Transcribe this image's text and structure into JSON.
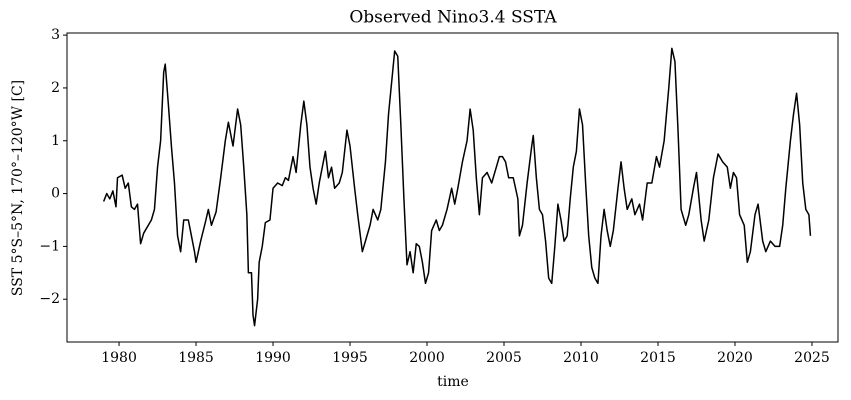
{
  "chart_data": {
    "type": "line",
    "title": "Observed Nino3.4 SSTA",
    "x_label": "time",
    "y_label": "SST 5°S–5°N, 170°–120°W [C]",
    "x": [
      1979.0,
      1979.2,
      1979.4,
      1979.6,
      1979.8,
      1979.9,
      1980.2,
      1980.4,
      1980.6,
      1980.8,
      1981.0,
      1981.2,
      1981.4,
      1981.6,
      1981.9,
      1982.1,
      1982.3,
      1982.5,
      1982.7,
      1982.9,
      1983.0,
      1983.2,
      1983.4,
      1983.6,
      1983.8,
      1984.0,
      1984.2,
      1984.5,
      1984.7,
      1984.9,
      1985.0,
      1985.3,
      1985.6,
      1985.8,
      1986.0,
      1986.3,
      1986.6,
      1986.9,
      1987.1,
      1987.4,
      1987.7,
      1987.9,
      1988.1,
      1988.3,
      1988.4,
      1988.6,
      1988.7,
      1988.8,
      1989.0,
      1989.1,
      1989.3,
      1989.5,
      1989.8,
      1990.0,
      1990.3,
      1990.6,
      1990.8,
      1991.0,
      1991.3,
      1991.5,
      1991.8,
      1992.0,
      1992.2,
      1992.4,
      1992.6,
      1992.8,
      1993.0,
      1993.2,
      1993.4,
      1993.6,
      1993.8,
      1994.0,
      1994.3,
      1994.5,
      1994.8,
      1995.0,
      1995.3,
      1995.5,
      1995.8,
      1996.0,
      1996.3,
      1996.5,
      1996.8,
      1997.0,
      1997.3,
      1997.5,
      1997.8,
      1997.9,
      1998.1,
      1998.3,
      1998.5,
      1998.7,
      1998.9,
      1999.1,
      1999.3,
      1999.5,
      1999.7,
      1999.9,
      2000.1,
      2000.3,
      2000.6,
      2000.8,
      2001.0,
      2001.3,
      2001.6,
      2001.8,
      2002.0,
      2002.3,
      2002.6,
      2002.8,
      2003.0,
      2003.2,
      2003.4,
      2003.6,
      2003.9,
      2004.2,
      2004.5,
      2004.7,
      2004.9,
      2005.1,
      2005.3,
      2005.6,
      2005.9,
      2006.0,
      2006.2,
      2006.5,
      2006.8,
      2006.9,
      2007.1,
      2007.3,
      2007.5,
      2007.7,
      2007.9,
      2008.1,
      2008.3,
      2008.5,
      2008.7,
      2008.9,
      2009.1,
      2009.3,
      2009.5,
      2009.7,
      2009.9,
      2010.1,
      2010.3,
      2010.5,
      2010.7,
      2010.9,
      2011.1,
      2011.3,
      2011.5,
      2011.7,
      2011.9,
      2012.1,
      2012.4,
      2012.6,
      2012.8,
      2013.0,
      2013.3,
      2013.5,
      2013.8,
      2014.0,
      2014.3,
      2014.6,
      2014.9,
      2015.1,
      2015.4,
      2015.7,
      2015.9,
      2016.1,
      2016.3,
      2016.5,
      2016.8,
      2017.0,
      2017.3,
      2017.5,
      2017.8,
      2018.0,
      2018.3,
      2018.6,
      2018.9,
      2019.2,
      2019.5,
      2019.7,
      2019.9,
      2020.1,
      2020.3,
      2020.6,
      2020.8,
      2021.0,
      2021.3,
      2021.5,
      2021.8,
      2022.0,
      2022.3,
      2022.6,
      2022.9,
      2023.1,
      2023.3,
      2023.6,
      2023.8,
      2024.0,
      2024.2,
      2024.4,
      2024.6,
      2024.8,
      2024.9
    ],
    "series": [
      {
        "color": "#000000",
        "values": [
          -0.15,
          0.0,
          -0.1,
          0.05,
          -0.25,
          0.3,
          0.35,
          0.1,
          0.2,
          -0.25,
          -0.3,
          -0.2,
          -0.95,
          -0.75,
          -0.6,
          -0.5,
          -0.3,
          0.5,
          1.0,
          2.3,
          2.45,
          1.7,
          0.9,
          0.2,
          -0.8,
          -1.1,
          -0.5,
          -0.5,
          -0.8,
          -1.1,
          -1.3,
          -0.9,
          -0.55,
          -0.3,
          -0.6,
          -0.35,
          0.3,
          1.0,
          1.35,
          0.9,
          1.6,
          1.3,
          0.5,
          -0.4,
          -1.5,
          -1.5,
          -2.3,
          -2.5,
          -2.0,
          -1.3,
          -1.0,
          -0.55,
          -0.5,
          0.1,
          0.2,
          0.15,
          0.3,
          0.25,
          0.7,
          0.4,
          1.3,
          1.75,
          1.3,
          0.5,
          0.1,
          -0.2,
          0.2,
          0.5,
          0.8,
          0.3,
          0.5,
          0.1,
          0.2,
          0.4,
          1.2,
          0.9,
          0.1,
          -0.4,
          -1.1,
          -0.9,
          -0.6,
          -0.3,
          -0.5,
          -0.3,
          0.6,
          1.5,
          2.4,
          2.7,
          2.6,
          1.3,
          -0.1,
          -1.35,
          -1.1,
          -1.5,
          -0.95,
          -1.0,
          -1.3,
          -1.7,
          -1.5,
          -0.7,
          -0.5,
          -0.7,
          -0.6,
          -0.3,
          0.1,
          -0.2,
          0.1,
          0.6,
          1.0,
          1.6,
          1.2,
          0.3,
          -0.4,
          0.3,
          0.4,
          0.2,
          0.5,
          0.7,
          0.7,
          0.6,
          0.3,
          0.3,
          -0.1,
          -0.8,
          -0.6,
          0.2,
          0.9,
          1.1,
          0.3,
          -0.3,
          -0.4,
          -0.9,
          -1.6,
          -1.7,
          -1.0,
          -0.2,
          -0.5,
          -0.9,
          -0.8,
          -0.1,
          0.5,
          0.8,
          1.6,
          1.3,
          0.2,
          -0.8,
          -1.4,
          -1.6,
          -1.7,
          -0.8,
          -0.3,
          -0.7,
          -1.0,
          -0.7,
          0.1,
          0.6,
          0.1,
          -0.3,
          -0.1,
          -0.4,
          -0.2,
          -0.5,
          0.2,
          0.2,
          0.7,
          0.5,
          1.0,
          2.0,
          2.75,
          2.5,
          1.2,
          -0.3,
          -0.6,
          -0.4,
          0.1,
          0.4,
          -0.5,
          -0.9,
          -0.5,
          0.3,
          0.75,
          0.6,
          0.5,
          0.1,
          0.4,
          0.3,
          -0.4,
          -0.6,
          -1.3,
          -1.1,
          -0.4,
          -0.2,
          -0.9,
          -1.1,
          -0.9,
          -1.0,
          -1.0,
          -0.6,
          0.1,
          1.0,
          1.5,
          1.9,
          1.3,
          0.2,
          -0.3,
          -0.4,
          -0.8
        ]
      }
    ],
    "xlim": [
      1976.62,
      2026.69
    ],
    "xticks": [
      1980,
      1985,
      1990,
      1995,
      2000,
      2005,
      2010,
      2015,
      2020,
      2025
    ],
    "ylim": [
      -2.81,
      3.04
    ],
    "yticks": [
      {
        "value": -2,
        "label": "−2"
      },
      {
        "value": -1,
        "label": "−1"
      },
      0,
      1,
      2,
      3
    ]
  }
}
